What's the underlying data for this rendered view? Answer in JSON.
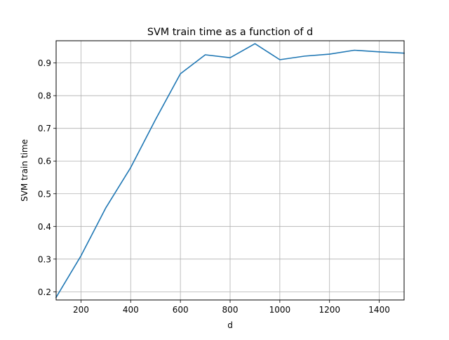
{
  "chart_data": {
    "type": "line",
    "title": "SVM train time as a function of d",
    "xlabel": "d",
    "ylabel": "SVM train time",
    "xlim": [
      100,
      1500
    ],
    "ylim": [
      0.175,
      0.968
    ],
    "xticks": [
      200,
      400,
      600,
      800,
      1000,
      1200,
      1400
    ],
    "yticks": [
      0.2,
      0.3,
      0.4,
      0.5,
      0.6,
      0.7,
      0.8,
      0.9
    ],
    "grid": true,
    "series": [
      {
        "color": "#1f77b4",
        "x": [
          100,
          200,
          300,
          400,
          500,
          600,
          700,
          800,
          900,
          1000,
          1100,
          1200,
          1300,
          1400,
          1500
        ],
        "y": [
          0.183,
          0.31,
          0.457,
          0.58,
          0.727,
          0.867,
          0.925,
          0.916,
          0.959,
          0.91,
          0.921,
          0.927,
          0.939,
          0.934,
          0.93
        ]
      }
    ]
  }
}
